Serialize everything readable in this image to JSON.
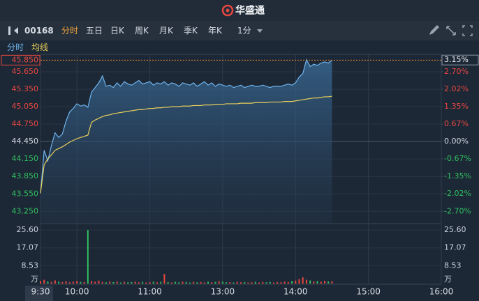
{
  "header": {
    "app_name": "华盛通"
  },
  "toolbar": {
    "code": "00168",
    "tabs": [
      {
        "label": "分时",
        "active": true
      },
      {
        "label": "五日",
        "active": false
      },
      {
        "label": "日K",
        "active": false
      },
      {
        "label": "周K",
        "active": false
      },
      {
        "label": "月K",
        "active": false
      },
      {
        "label": "季K",
        "active": false
      },
      {
        "label": "年K",
        "active": false
      }
    ],
    "interval": "1分"
  },
  "chart_data": {
    "type": "line",
    "x": [
      "9:30",
      "9:33",
      "9:36",
      "9:39",
      "9:42",
      "9:45",
      "9:48",
      "9:51",
      "9:54",
      "9:57",
      "10:00",
      "10:03",
      "10:06",
      "10:09",
      "10:12",
      "10:15",
      "10:18",
      "10:21",
      "10:24",
      "10:27",
      "10:30",
      "10:33",
      "10:36",
      "10:39",
      "10:42",
      "10:45",
      "10:48",
      "10:51",
      "10:54",
      "10:57",
      "11:00",
      "11:03",
      "11:06",
      "11:09",
      "11:12",
      "11:15",
      "11:18",
      "11:21",
      "11:24",
      "11:27",
      "11:30",
      "11:33",
      "11:36",
      "11:39",
      "11:42",
      "11:45",
      "11:48",
      "11:51",
      "11:54",
      "11:57",
      "13:00",
      "13:03",
      "13:06",
      "13:09",
      "13:12",
      "13:15",
      "13:18",
      "13:21",
      "13:24",
      "13:27",
      "13:30",
      "13:33",
      "13:36",
      "13:39",
      "13:42",
      "13:45",
      "13:48",
      "13:51",
      "13:54",
      "13:57",
      "14:00",
      "14:03",
      "14:06",
      "14:09",
      "14:12",
      "14:15",
      "14:18",
      "14:21",
      "14:24",
      "14:27",
      "14:30"
    ],
    "series": [
      {
        "name": "分时",
        "color": "#6fb4ee",
        "values": [
          43.56,
          44.3,
          44.12,
          44.38,
          44.6,
          44.52,
          44.58,
          44.8,
          44.96,
          45.02,
          45.1,
          45.06,
          45.08,
          45.04,
          45.3,
          45.38,
          45.46,
          45.58,
          45.4,
          45.42,
          45.38,
          45.46,
          45.4,
          45.48,
          45.44,
          45.42,
          45.46,
          45.5,
          45.44,
          45.46,
          45.48,
          45.42,
          45.46,
          45.44,
          45.48,
          45.42,
          45.46,
          45.44,
          45.4,
          45.46,
          45.44,
          45.42,
          45.46,
          45.4,
          45.44,
          45.48,
          45.42,
          45.46,
          45.4,
          45.44,
          45.42,
          45.4,
          45.42,
          45.38,
          45.4,
          45.42,
          45.38,
          45.4,
          45.42,
          45.4,
          45.4,
          45.42,
          45.4,
          45.38,
          45.4,
          45.4,
          45.4,
          45.42,
          45.44,
          45.42,
          45.46,
          45.56,
          45.62,
          45.86,
          45.74,
          45.78,
          45.76,
          45.8,
          45.82,
          45.8,
          45.85
        ]
      },
      {
        "name": "均线",
        "color": "#e9cf5a",
        "values": [
          43.56,
          44.05,
          44.15,
          44.22,
          44.3,
          44.33,
          44.36,
          44.4,
          44.44,
          44.47,
          44.5,
          44.52,
          44.54,
          44.56,
          44.78,
          44.82,
          44.85,
          44.88,
          44.9,
          44.91,
          44.93,
          44.94,
          44.95,
          44.96,
          44.97,
          44.98,
          44.99,
          45.0,
          45.0,
          45.01,
          45.02,
          45.02,
          45.03,
          45.03,
          45.04,
          45.04,
          45.05,
          45.05,
          45.05,
          45.06,
          45.06,
          45.06,
          45.07,
          45.07,
          45.07,
          45.08,
          45.08,
          45.08,
          45.09,
          45.09,
          45.09,
          45.1,
          45.1,
          45.1,
          45.1,
          45.11,
          45.11,
          45.11,
          45.11,
          45.12,
          45.12,
          45.12,
          45.12,
          45.13,
          45.13,
          45.13,
          45.13,
          45.14,
          45.14,
          45.14,
          45.15,
          45.16,
          45.17,
          45.18,
          45.19,
          45.2,
          45.2,
          45.21,
          45.22,
          45.22,
          45.23
        ]
      }
    ],
    "xlim": [
      "9:30",
      "16:00"
    ],
    "xticks": [
      "9:30",
      "10:00",
      "11:00",
      "13:00",
      "14:00",
      "15:00",
      "16:00"
    ],
    "ylim": [
      43.05,
      45.95
    ],
    "yticks": [
      {
        "value": 45.65,
        "label": "45.650"
      },
      {
        "value": 45.35,
        "label": "45.350"
      },
      {
        "value": 45.05,
        "label": "45.050"
      },
      {
        "value": 44.75,
        "label": "44.750"
      },
      {
        "value": 44.45,
        "label": "44.450"
      },
      {
        "value": 44.15,
        "label": "44.150"
      },
      {
        "value": 43.85,
        "label": "43.850"
      },
      {
        "value": 43.55,
        "label": "43.550"
      },
      {
        "value": 43.25,
        "label": "43.250"
      }
    ],
    "y2lim": [
      -3.15,
      3.37
    ],
    "y2ticks": [
      {
        "value": 2.7,
        "label": "2.70%"
      },
      {
        "value": 2.02,
        "label": "2.02%"
      },
      {
        "value": 1.35,
        "label": "1.35%"
      },
      {
        "value": 0.67,
        "label": "0.67%"
      },
      {
        "value": 0,
        "label": "0.00%"
      },
      {
        "value": -0.67,
        "label": "-0.67%"
      },
      {
        "value": -1.35,
        "label": "-1.35%"
      },
      {
        "value": -2.02,
        "label": "-2.02%"
      },
      {
        "value": -2.7,
        "label": "-2.70%"
      }
    ],
    "last_price": {
      "value": 45.85,
      "label": "45.850"
    },
    "last_change": {
      "value": 3.15,
      "label": "3.15%"
    },
    "up_color": "#e8473f",
    "down_color": "#2fbf5f",
    "volume": {
      "unit": "万",
      "ylim": [
        0,
        28.3
      ],
      "yticks": [
        {
          "value": 25.6,
          "label": "25.60"
        },
        17.07,
        8.53
      ],
      "values": [
        1.2,
        1.8,
        1.0,
        0.8,
        1.5,
        0.9,
        0.7,
        1.1,
        0.6,
        0.9,
        1.3,
        0.8,
        0.7,
        25.6,
        1.2,
        0.9,
        1.4,
        0.8,
        0.6,
        1.0,
        0.7,
        0.9,
        0.5,
        0.8,
        0.6,
        0.7,
        0.9,
        0.6,
        0.8,
        0.5,
        0.7,
        0.9,
        0.6,
        0.8,
        4.6,
        0.7,
        0.5,
        0.8,
        0.6,
        0.9,
        0.7,
        0.5,
        0.8,
        0.6,
        0.7,
        0.5,
        0.9,
        0.6,
        0.8,
        1.1,
        0.9,
        0.6,
        0.7,
        0.5,
        0.8,
        0.6,
        0.7,
        0.5,
        0.6,
        0.8,
        0.5,
        0.7,
        0.6,
        0.8,
        0.5,
        0.7,
        0.6,
        0.9,
        0.7,
        1.2,
        1.4,
        2.1,
        3.0,
        1.8,
        1.5,
        1.0,
        1.2,
        0.9,
        1.3,
        1.0,
        1.1
      ]
    }
  }
}
